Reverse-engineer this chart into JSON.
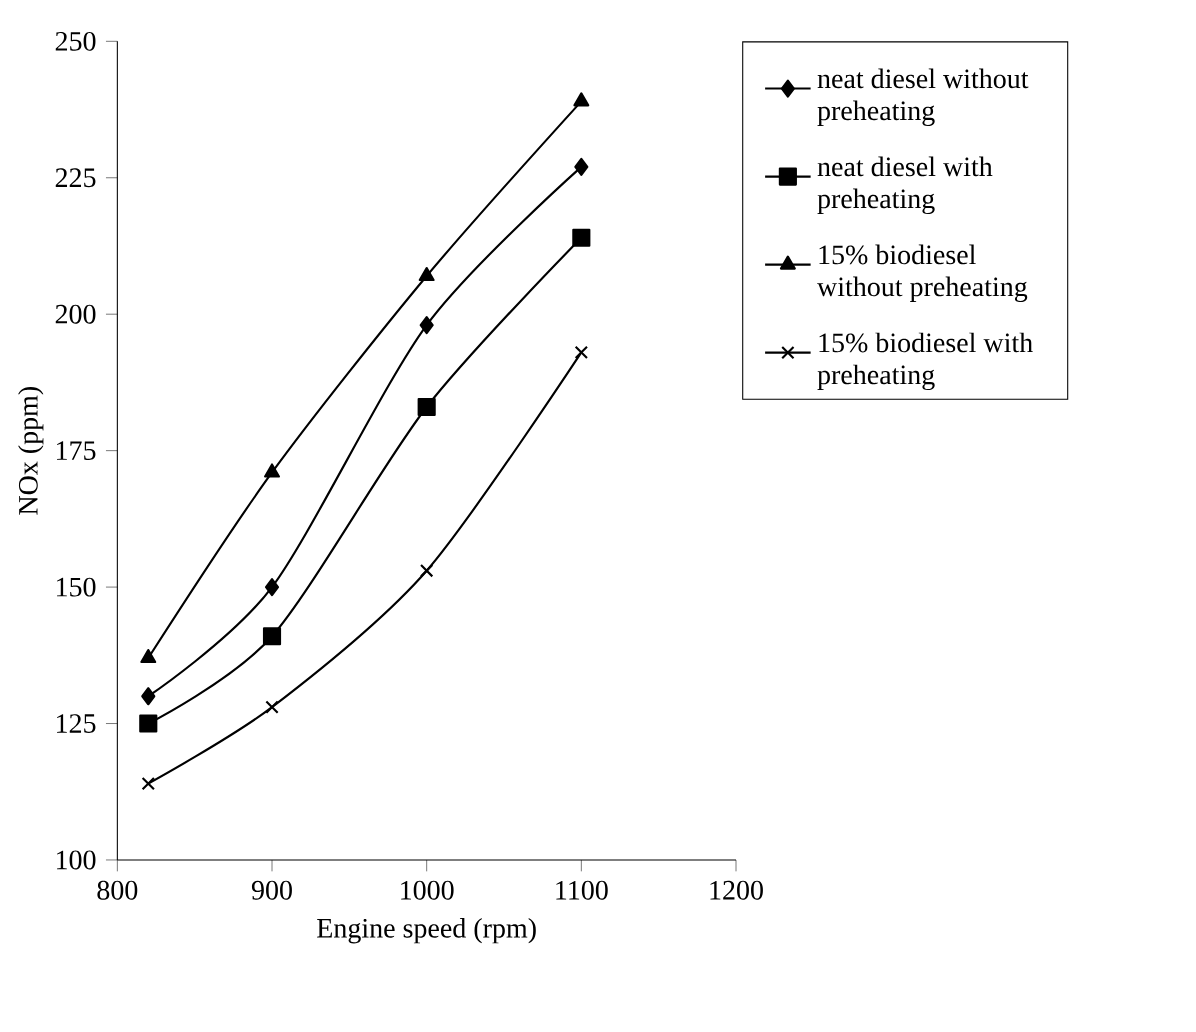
{
  "chart_data": {
    "type": "line",
    "xlabel": "Engine speed (rpm)",
    "ylabel": "NOx    (ppm)",
    "xlim": [
      800,
      1200
    ],
    "xticks": [
      800,
      900,
      1000,
      1100,
      1200
    ],
    "ylim": [
      100,
      250
    ],
    "yticks": [
      100,
      125,
      150,
      175,
      200,
      225,
      250
    ],
    "grid": false,
    "legend": "right",
    "line_style": "solid",
    "series": [
      {
        "name": "neat diesel without preheating",
        "color": "#000000",
        "marker": "diamond",
        "x": [
          820,
          900,
          1000,
          1100
        ],
        "values": [
          130,
          150,
          198,
          227
        ]
      },
      {
        "name": "neat diesel with preheating",
        "color": "#000000",
        "marker": "square",
        "x": [
          820,
          900,
          1000,
          1100
        ],
        "values": [
          125,
          141,
          183,
          214
        ]
      },
      {
        "name": "15% biodiesel without preheating",
        "color": "#000000",
        "marker": "triangle",
        "x": [
          820,
          900,
          1000,
          1100
        ],
        "values": [
          137,
          171,
          207,
          239
        ]
      },
      {
        "name": "15% biodiesel with preheating",
        "color": "#000000",
        "marker": "cross",
        "x": [
          820,
          900,
          1000,
          1100
        ],
        "values": [
          114,
          128,
          153,
          193
        ]
      }
    ]
  }
}
